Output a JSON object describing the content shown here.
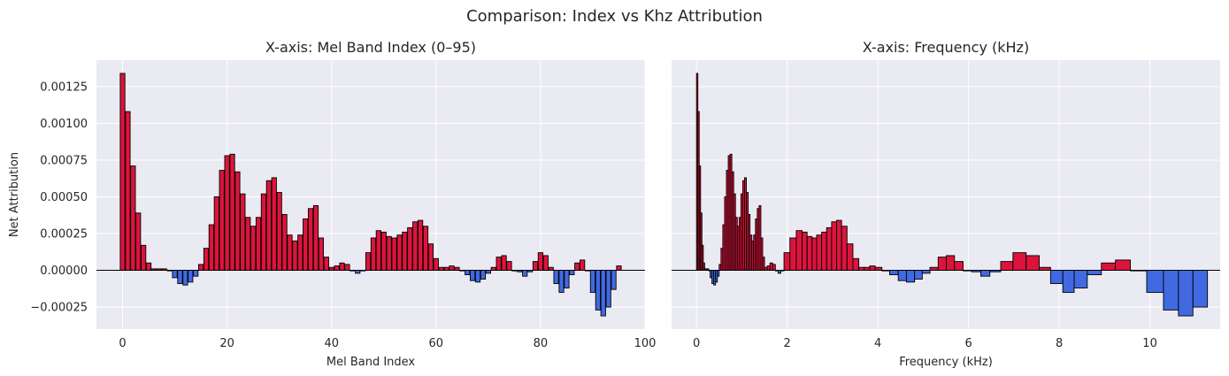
{
  "figure": {
    "suptitle": "Comparison: Index vs Khz Attribution"
  },
  "colors": {
    "positive": "#dc143c",
    "negative": "#4169e1",
    "background": "#eaeaf2",
    "grid": "#ffffff",
    "edge": "#000000"
  },
  "chart_data": [
    {
      "type": "bar",
      "title": "X-axis: Mel Band Index (0–95)",
      "xlabel": "Mel Band Index",
      "ylabel": "Net Attribution",
      "xlim": [
        -5,
        100
      ],
      "ylim": [
        -0.0004,
        0.00143
      ],
      "xticks": [
        0,
        20,
        40,
        60,
        80,
        100
      ],
      "yticks": [
        -0.00025,
        0.0,
        0.00025,
        0.0005,
        0.00075,
        0.001,
        0.00125
      ],
      "ytick_labels": [
        "−0.00025",
        "0.00000",
        "0.00025",
        "0.00050",
        "0.00075",
        "0.00100",
        "0.00125"
      ],
      "grid": true,
      "x": [
        0,
        1,
        2,
        3,
        4,
        5,
        6,
        7,
        8,
        9,
        10,
        11,
        12,
        13,
        14,
        15,
        16,
        17,
        18,
        19,
        20,
        21,
        22,
        23,
        24,
        25,
        26,
        27,
        28,
        29,
        30,
        31,
        32,
        33,
        34,
        35,
        36,
        37,
        38,
        39,
        40,
        41,
        42,
        43,
        44,
        45,
        46,
        47,
        48,
        49,
        50,
        51,
        52,
        53,
        54,
        55,
        56,
        57,
        58,
        59,
        60,
        61,
        62,
        63,
        64,
        65,
        66,
        67,
        68,
        69,
        70,
        71,
        72,
        73,
        74,
        75,
        76,
        77,
        78,
        79,
        80,
        81,
        82,
        83,
        84,
        85,
        86,
        87,
        88,
        89,
        90,
        91,
        92,
        93,
        94,
        95
      ],
      "values": [
        0.00134,
        0.00108,
        0.00071,
        0.00039,
        0.00017,
        5e-05,
        1e-05,
        1e-05,
        1e-05,
        0.0,
        -5e-05,
        -9e-05,
        -0.0001,
        -8e-05,
        -4e-05,
        4e-05,
        0.00015,
        0.00031,
        0.0005,
        0.00068,
        0.00078,
        0.00079,
        0.00067,
        0.00052,
        0.00036,
        0.0003,
        0.00036,
        0.00052,
        0.00061,
        0.00063,
        0.00053,
        0.00038,
        0.00024,
        0.0002,
        0.00024,
        0.00035,
        0.00042,
        0.00044,
        0.00022,
        9e-05,
        2e-05,
        3e-05,
        5e-05,
        4e-05,
        0.0,
        -2e-05,
        0.0,
        0.00012,
        0.00022,
        0.00027,
        0.00026,
        0.00023,
        0.00022,
        0.00024,
        0.00026,
        0.00029,
        0.00033,
        0.00034,
        0.0003,
        0.00018,
        8e-05,
        2e-05,
        2e-05,
        3e-05,
        2e-05,
        0.0,
        -3e-05,
        -7e-05,
        -8e-05,
        -6e-05,
        -2e-05,
        2e-05,
        9e-05,
        0.0001,
        6e-05,
        0.0,
        -1e-05,
        -4e-05,
        -1e-05,
        6e-05,
        0.00012,
        0.0001,
        2e-05,
        -9e-05,
        -0.00015,
        -0.00012,
        -3e-05,
        5e-05,
        7e-05,
        0.0,
        -0.00015,
        -0.00027,
        -0.00031,
        -0.00025,
        -0.00013,
        3e-05
      ],
      "bar_width": 0.9
    },
    {
      "type": "bar",
      "title": "X-axis: Frequency (kHz)",
      "xlabel": "Frequency (kHz)",
      "ylabel": "",
      "xlim": [
        -0.55,
        11.55
      ],
      "ylim": [
        -0.0004,
        0.00143
      ],
      "xticks": [
        0,
        2,
        4,
        6,
        8,
        10
      ],
      "grid": true,
      "band_edges": [
        0.0,
        0.03,
        0.06,
        0.09,
        0.12,
        0.15,
        0.18,
        0.21,
        0.24,
        0.27,
        0.3,
        0.34,
        0.38,
        0.42,
        0.46,
        0.5,
        0.54,
        0.58,
        0.62,
        0.66,
        0.7,
        0.74,
        0.78,
        0.82,
        0.86,
        0.9,
        0.94,
        0.98,
        1.02,
        1.06,
        1.1,
        1.14,
        1.18,
        1.22,
        1.26,
        1.3,
        1.34,
        1.38,
        1.42,
        1.46,
        1.5,
        1.56,
        1.62,
        1.68,
        1.74,
        1.8,
        1.86,
        1.93,
        2.06,
        2.2,
        2.33,
        2.44,
        2.55,
        2.65,
        2.76,
        2.87,
        2.98,
        3.09,
        3.2,
        3.32,
        3.45,
        3.58,
        3.7,
        3.82,
        3.94,
        4.09,
        4.26,
        4.45,
        4.63,
        4.81,
        4.98,
        5.15,
        5.33,
        5.51,
        5.69,
        5.88,
        6.07,
        6.27,
        6.47,
        6.71,
        6.98,
        7.27,
        7.56,
        7.81,
        8.08,
        8.33,
        8.62,
        8.93,
        9.24,
        9.57,
        9.93,
        10.3,
        10.63,
        10.95,
        11.27
      ],
      "values": [
        0.00134,
        0.00108,
        0.00071,
        0.00039,
        0.00017,
        5e-05,
        1e-05,
        1e-05,
        1e-05,
        0.0,
        -5e-05,
        -9e-05,
        -0.0001,
        -8e-05,
        -4e-05,
        4e-05,
        0.00015,
        0.00031,
        0.0005,
        0.00068,
        0.00078,
        0.00079,
        0.00067,
        0.00052,
        0.00036,
        0.0003,
        0.00036,
        0.00052,
        0.00061,
        0.00063,
        0.00053,
        0.00038,
        0.00024,
        0.0002,
        0.00024,
        0.00035,
        0.00042,
        0.00044,
        0.00022,
        9e-05,
        2e-05,
        3e-05,
        5e-05,
        4e-05,
        0.0,
        -2e-05,
        0.0,
        0.00012,
        0.00022,
        0.00027,
        0.00026,
        0.00023,
        0.00022,
        0.00024,
        0.00026,
        0.00029,
        0.00033,
        0.00034,
        0.0003,
        0.00018,
        8e-05,
        2e-05,
        2e-05,
        3e-05,
        2e-05,
        0.0,
        -3e-05,
        -7e-05,
        -8e-05,
        -6e-05,
        -2e-05,
        2e-05,
        9e-05,
        0.0001,
        6e-05,
        0.0,
        -1e-05,
        -4e-05,
        -1e-05,
        6e-05,
        0.00012,
        0.0001,
        2e-05,
        -9e-05,
        -0.00015,
        -0.00012,
        -3e-05,
        5e-05,
        7e-05,
        0.0,
        -0.00015,
        -0.00027,
        -0.00031,
        -0.00025,
        -0.00013,
        3e-05
      ]
    }
  ]
}
